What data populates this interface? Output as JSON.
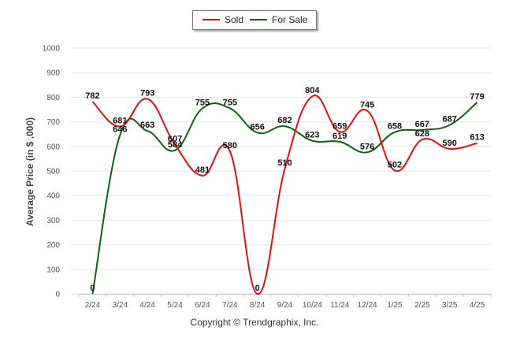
{
  "legend": {
    "sold_label": "Sold",
    "forsale_label": "For Sale"
  },
  "copyright": "Copyright © Trendgraphix, Inc.",
  "chart_data": {
    "type": "line",
    "ylabel": "Average Price (in $ ,000)",
    "xlabel": "",
    "ylim": [
      0,
      1000
    ],
    "yticks": [
      0,
      100,
      200,
      300,
      400,
      500,
      600,
      700,
      800,
      900,
      1000
    ],
    "grid": true,
    "legend_position": "top-center",
    "categories": [
      "2/24",
      "3/24",
      "4/24",
      "5/24",
      "6/24",
      "7/24",
      "8/24",
      "9/24",
      "10/24",
      "11/24",
      "12/24",
      "1/25",
      "2/25",
      "3/25",
      "4/25"
    ],
    "series": [
      {
        "name": "Sold",
        "color": "#e01010",
        "values": [
          782,
          681,
          793,
          607,
          481,
          580,
          0,
          510,
          804,
          659,
          745,
          502,
          628,
          590,
          613
        ]
      },
      {
        "name": "For Sale",
        "color": "#0b6410",
        "values": [
          0,
          646,
          663,
          584,
          755,
          755,
          656,
          682,
          623,
          619,
          576,
          658,
          667,
          687,
          779
        ]
      }
    ]
  }
}
